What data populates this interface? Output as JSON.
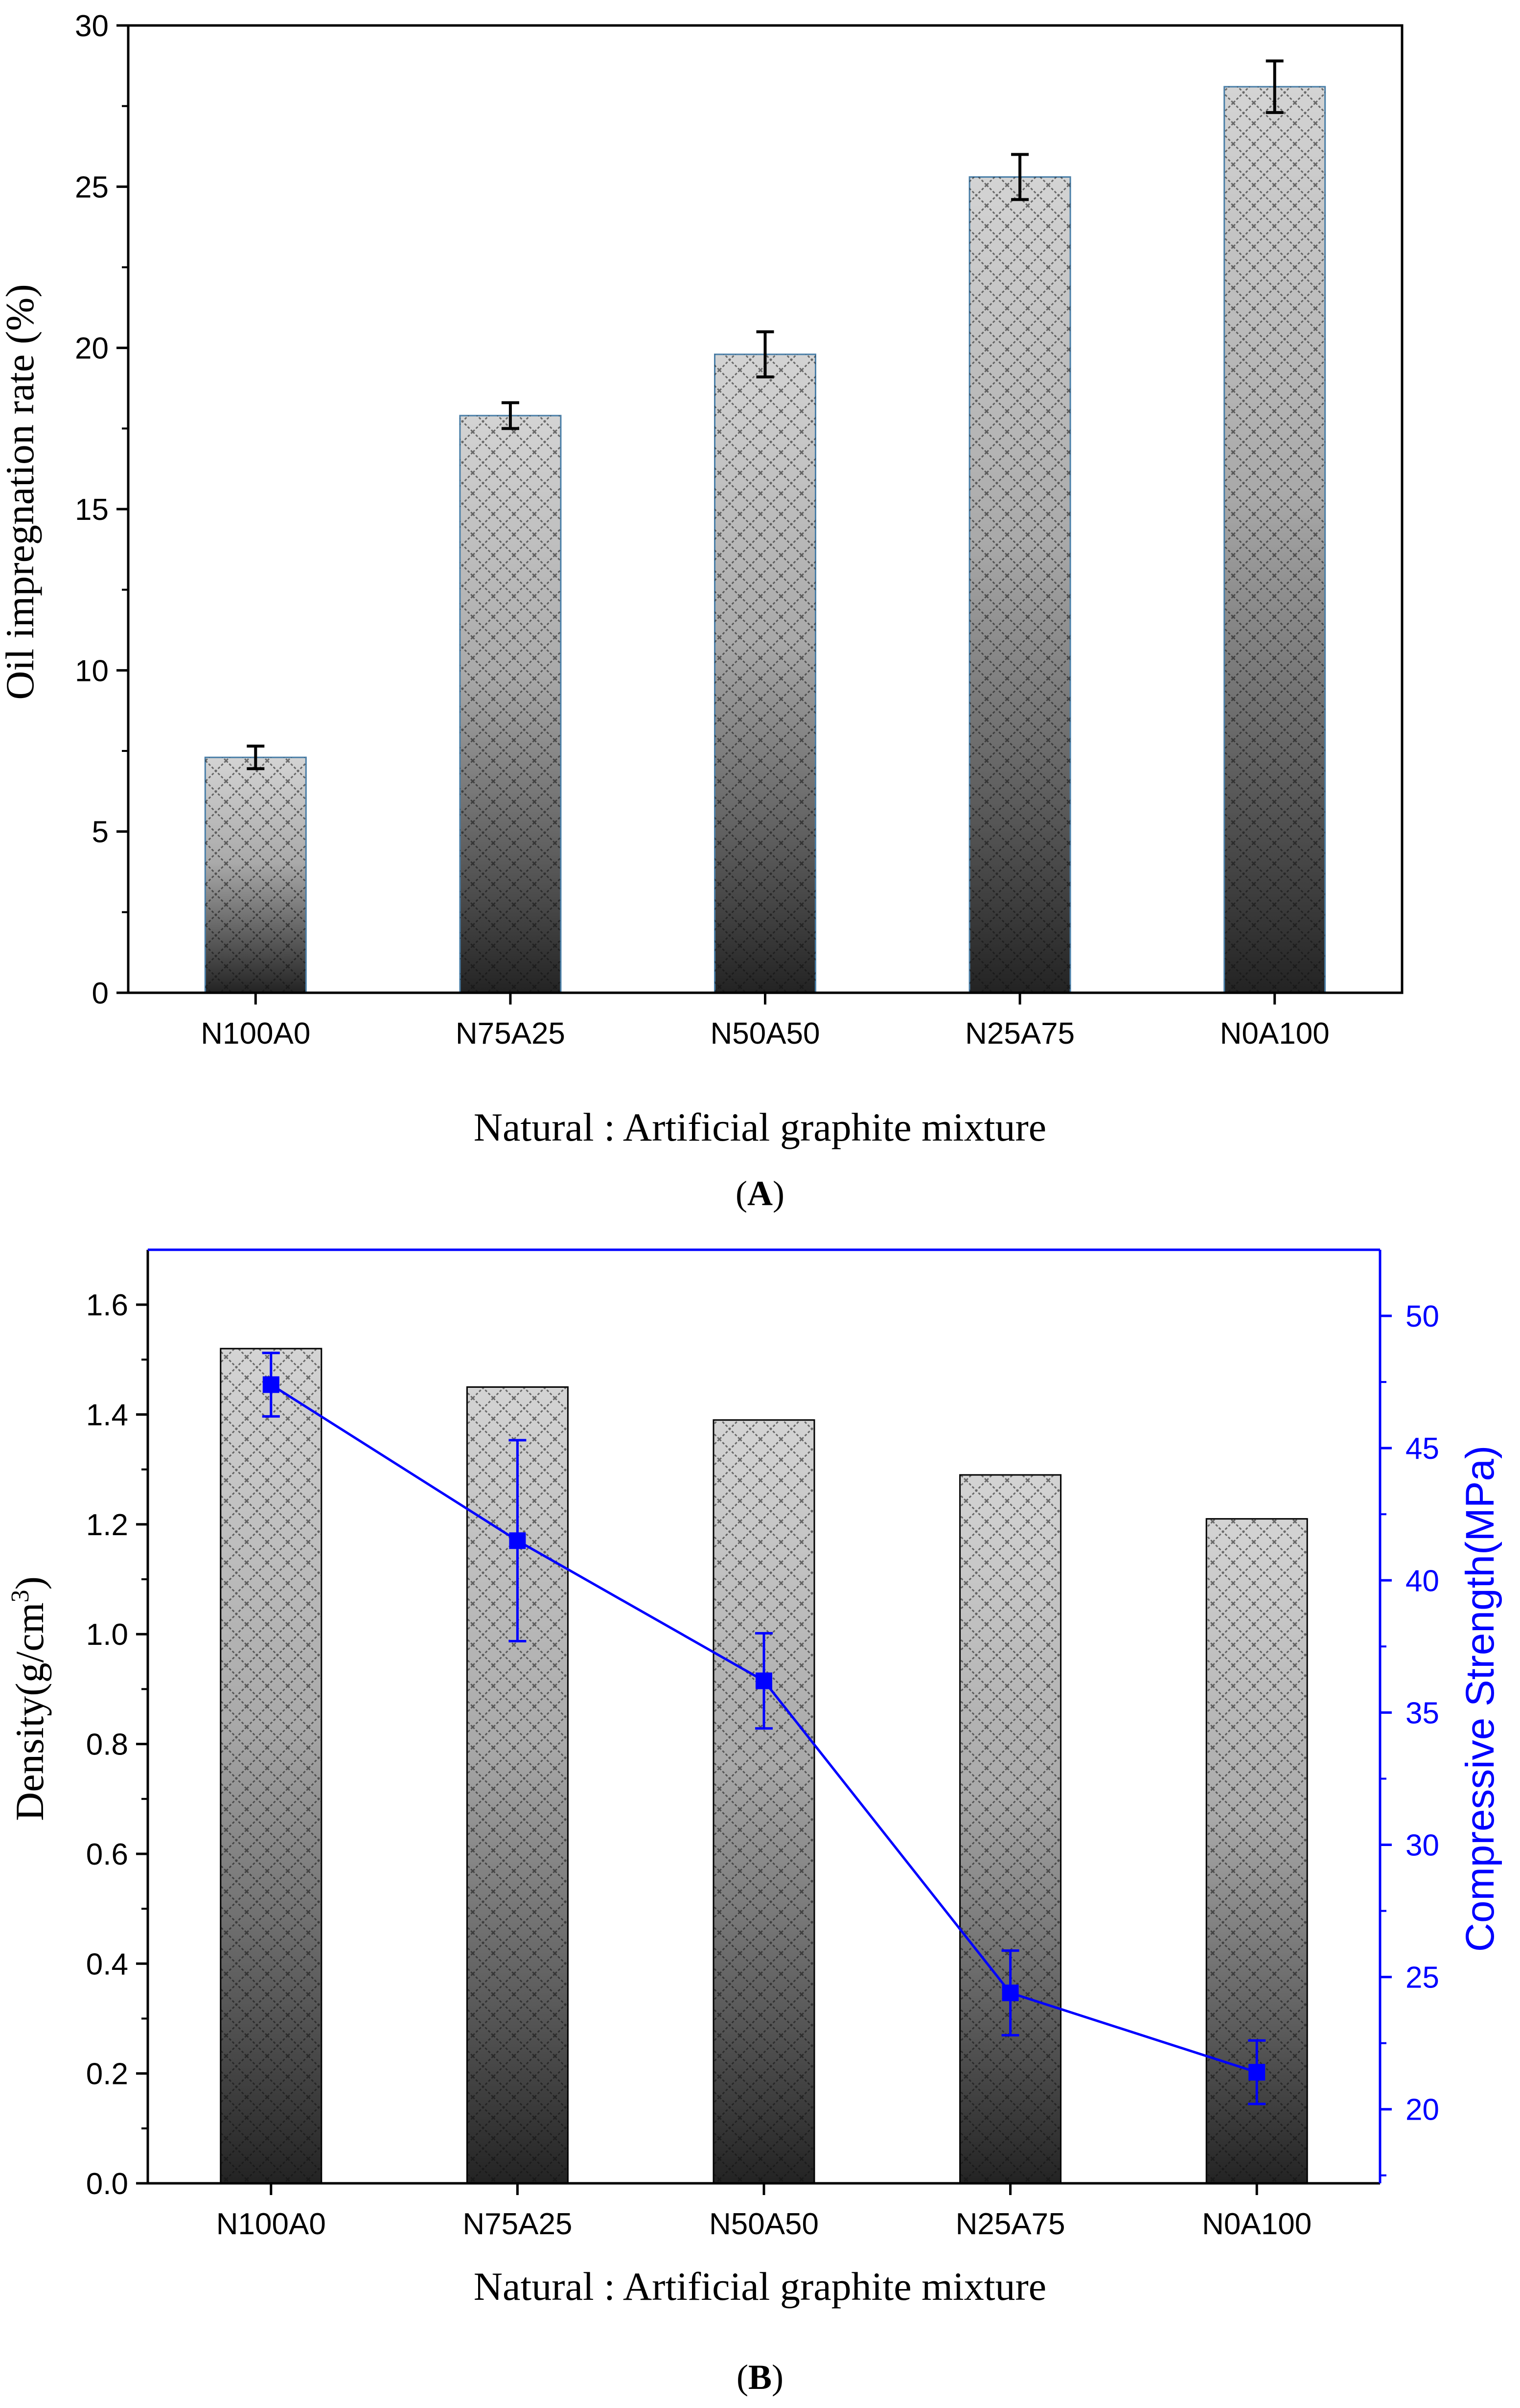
{
  "chart_data": [
    {
      "panel": "A",
      "panel_label": "A",
      "type": "bar",
      "title": "",
      "xlabel": "Natural : Artificial graphite mixture",
      "ylabel": "Oil impregnation rate (%)",
      "categories": [
        "N100A0",
        "N75A25",
        "N50A50",
        "N25A75",
        "N0A100"
      ],
      "values": [
        7.3,
        17.9,
        19.8,
        25.3,
        28.1
      ],
      "errors": [
        0.35,
        0.4,
        0.7,
        0.7,
        0.8
      ],
      "ylim": [
        0,
        30
      ],
      "yticks": [
        0,
        5,
        10,
        15,
        20,
        25,
        30
      ],
      "grid": false
    },
    {
      "panel": "B",
      "panel_label": "B",
      "type": "bar",
      "title": "",
      "xlabel": "Natural : Artificial graphite mixture",
      "ylabel_left_main": "Density(g/cm",
      "ylabel_left_sup": "3",
      "ylabel_left_tail": ")",
      "ylabel_right": "Compressive Strength(MPa)",
      "categories": [
        "N100A0",
        "N75A25",
        "N50A50",
        "N25A75",
        "N0A100"
      ],
      "series": [
        {
          "name": "Density",
          "type": "bar",
          "axis": "left",
          "values": [
            1.52,
            1.45,
            1.39,
            1.29,
            1.21
          ]
        },
        {
          "name": "Compressive Strength",
          "type": "line",
          "axis": "right",
          "color": "#0000ff",
          "values": [
            47.4,
            41.5,
            36.2,
            24.4,
            21.4
          ],
          "errors": [
            1.2,
            3.8,
            1.8,
            1.6,
            1.2
          ]
        }
      ],
      "ylim_left": [
        0,
        1.7
      ],
      "yticks_left": [
        0.0,
        0.2,
        0.4,
        0.6,
        0.8,
        1.0,
        1.2,
        1.4,
        1.6
      ],
      "ylim_right": [
        17.2,
        52.5
      ],
      "yticks_right": [
        20,
        25,
        30,
        35,
        40,
        45,
        50
      ],
      "grid": false
    }
  ]
}
